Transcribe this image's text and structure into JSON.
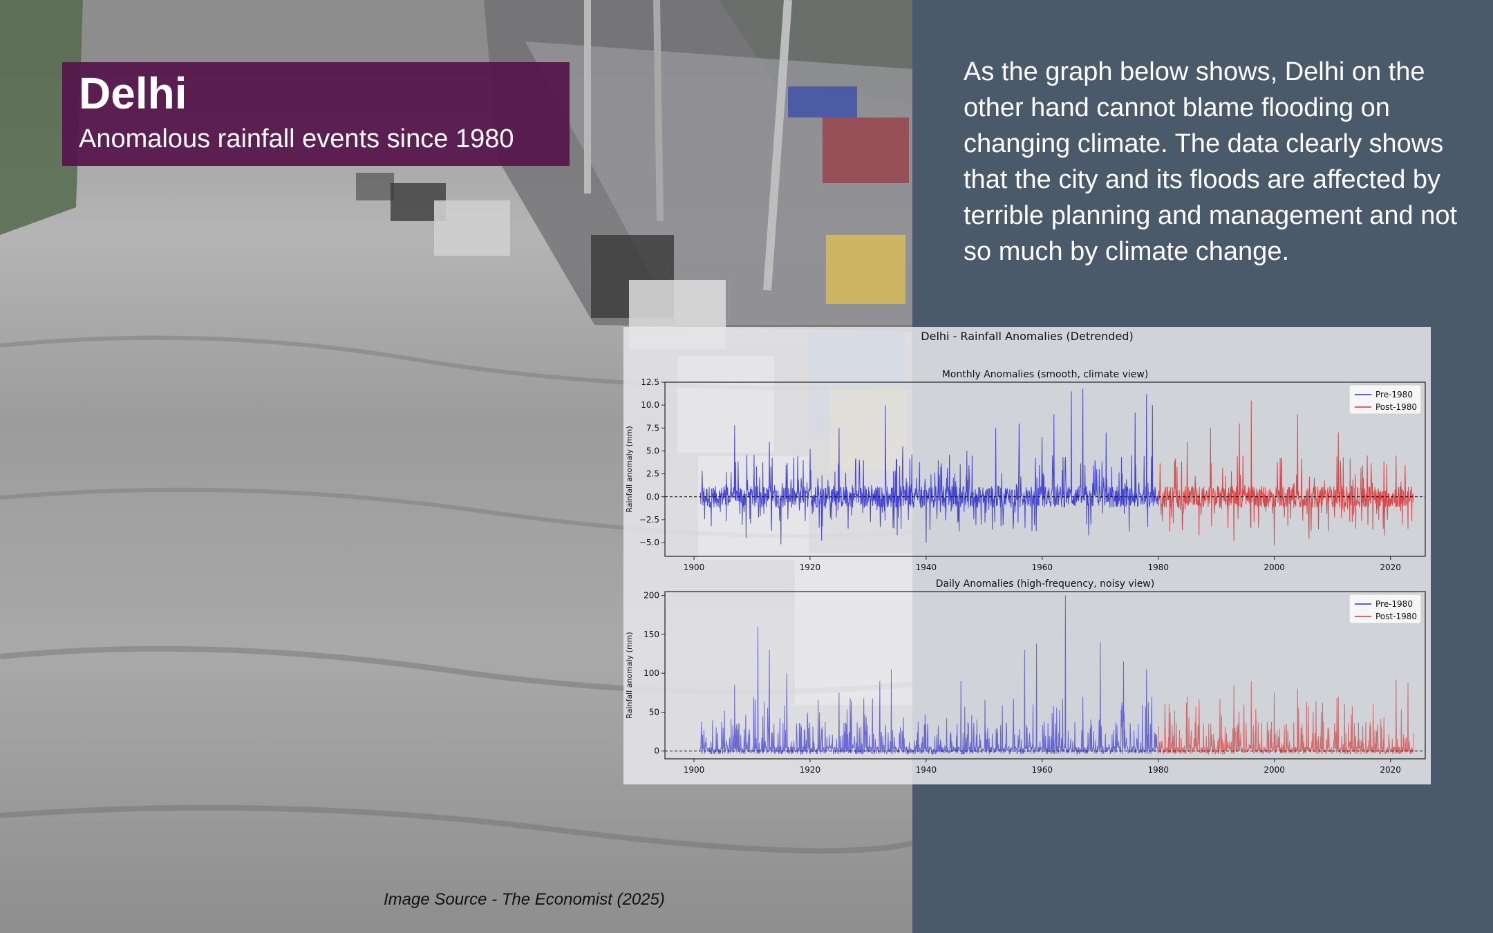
{
  "title": "Delhi",
  "subtitle": "Anomalous rainfall events since 1980",
  "blurb": "As the graph below shows, Delhi on the other hand cannot blame flooding on changing climate. The data clearly shows that the city and its floods are affected by terrible planning and management and not so much by climate change.",
  "source": "Image Source - The Economist (2025)",
  "colors": {
    "pre": "#2b2bd6",
    "post": "#d93030",
    "panel": "#4a5a6a",
    "title_box": "#55144b"
  },
  "chart_data": {
    "suptitle": "Delhi - Rainfall Anomalies (Detrended)",
    "panels": [
      {
        "type": "line",
        "title": "Monthly Anomalies (smooth, climate view)",
        "ylabel": "Rainfall anomaly (mm)",
        "xlim": [
          1895,
          2026
        ],
        "ylim": [
          -6.5,
          12.5
        ],
        "xticks": [
          1900,
          1920,
          1940,
          1960,
          1980,
          2000,
          2020
        ],
        "yticks": [
          12.5,
          10.0,
          7.5,
          5.0,
          2.5,
          0.0,
          -2.5,
          -5.0
        ],
        "ytick_labels": [
          "12.5",
          "10.0",
          "7.5",
          "5.0",
          "2.5",
          "0.0",
          "−2.5",
          "−5.0"
        ],
        "reference_line": 0,
        "legend": "top-right",
        "series": [
          {
            "name": "Pre-1980",
            "color": "#2b2bd6",
            "x_range": [
              1901,
              1980
            ],
            "peaks": [
              [
                1907,
                7.8
              ],
              [
                1913,
                6.0
              ],
              [
                1920,
                5.2
              ],
              [
                1925,
                7.5
              ],
              [
                1933,
                10.0
              ],
              [
                1936,
                5.5
              ],
              [
                1947,
                5.0
              ],
              [
                1952,
                7.5
              ],
              [
                1956,
                8.0
              ],
              [
                1960,
                6.5
              ],
              [
                1962,
                9.0
              ],
              [
                1965,
                11.5
              ],
              [
                1967,
                11.8
              ],
              [
                1971,
                7.0
              ],
              [
                1976,
                9.2
              ],
              [
                1978,
                11.2
              ],
              [
                1979,
                10.0
              ]
            ],
            "troughs": [
              [
                1903,
                -3.2
              ],
              [
                1909,
                -4.5
              ],
              [
                1915,
                -5.2
              ],
              [
                1922,
                -4.8
              ],
              [
                1935,
                -4.2
              ],
              [
                1940,
                -5.0
              ],
              [
                1955,
                -3.5
              ],
              [
                1968,
                -4.2
              ],
              [
                1975,
                -3.8
              ]
            ]
          },
          {
            "name": "Post-1980",
            "color": "#d93030",
            "x_range": [
              1980,
              2024
            ],
            "peaks": [
              [
                1985,
                6.0
              ],
              [
                1989,
                7.5
              ],
              [
                1994,
                8.0
              ],
              [
                1996,
                10.5
              ],
              [
                2001,
                4.2
              ],
              [
                2004,
                9.0
              ],
              [
                2011,
                7.0
              ],
              [
                2016,
                4.5
              ],
              [
                2021,
                4.5
              ]
            ],
            "troughs": [
              [
                1982,
                -3.8
              ],
              [
                1987,
                -4.2
              ],
              [
                1993,
                -4.8
              ],
              [
                2000,
                -5.3
              ],
              [
                2006,
                -4.6
              ],
              [
                2014,
                -3.5
              ],
              [
                2019,
                -4.2
              ],
              [
                2023,
                -3.5
              ]
            ]
          }
        ]
      },
      {
        "type": "line",
        "title": "Daily Anomalies (high-frequency, noisy view)",
        "ylabel": "Rainfall anomaly (mm)",
        "xlim": [
          1895,
          2026
        ],
        "ylim": [
          -10,
          205
        ],
        "xticks": [
          1900,
          1920,
          1940,
          1960,
          1980,
          2000,
          2020
        ],
        "yticks": [
          200,
          150,
          100,
          50,
          0
        ],
        "ytick_labels": [
          "200",
          "150",
          "100",
          "50",
          "0"
        ],
        "reference_line": 0,
        "legend": "top-right",
        "series": [
          {
            "name": "Pre-1980",
            "color": "#2b2bd6",
            "x_range": [
              1901,
              1980
            ],
            "peaks": [
              [
                1907,
                85
              ],
              [
                1911,
                160
              ],
              [
                1913,
                130
              ],
              [
                1916,
                100
              ],
              [
                1925,
                75
              ],
              [
                1932,
                90
              ],
              [
                1934,
                105
              ],
              [
                1946,
                90
              ],
              [
                1957,
                130
              ],
              [
                1959,
                138
              ],
              [
                1964,
                200
              ],
              [
                1967,
                70
              ],
              [
                1970,
                140
              ],
              [
                1974,
                115
              ],
              [
                1978,
                105
              ]
            ]
          },
          {
            "name": "Post-1980",
            "color": "#d93030",
            "x_range": [
              1980,
              2024
            ],
            "peaks": [
              [
                1985,
                70
              ],
              [
                1993,
                85
              ],
              [
                1996,
                90
              ],
              [
                2000,
                75
              ],
              [
                2004,
                80
              ],
              [
                2011,
                70
              ],
              [
                2017,
                60
              ],
              [
                2021,
                92
              ],
              [
                2023,
                88
              ]
            ]
          }
        ]
      }
    ]
  }
}
